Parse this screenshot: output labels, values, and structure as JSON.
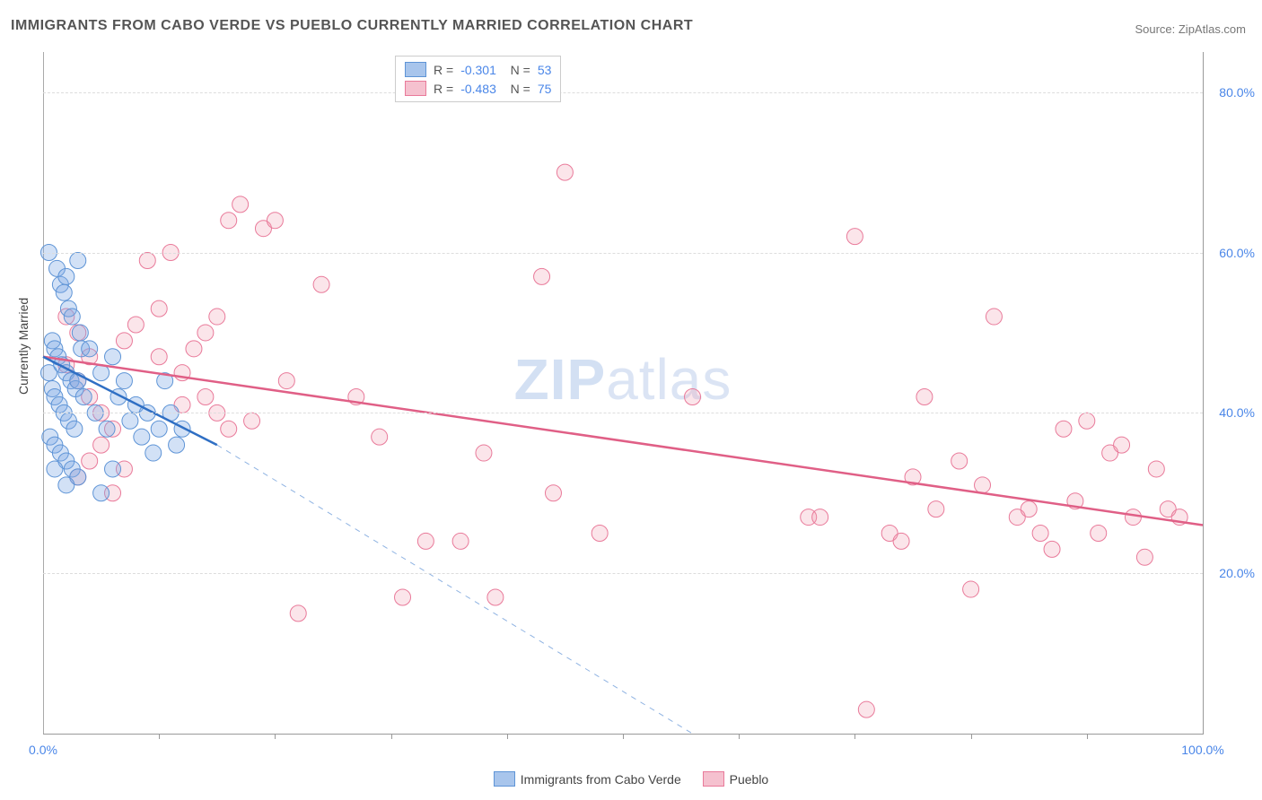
{
  "title": "IMMIGRANTS FROM CABO VERDE VS PUEBLO CURRENTLY MARRIED CORRELATION CHART",
  "source_label": "Source: ",
  "source_name": "ZipAtlas.com",
  "watermark_prefix": "ZIP",
  "watermark_suffix": "atlas",
  "y_axis_title": "Currently Married",
  "chart": {
    "type": "scatter",
    "xlim": [
      0,
      100
    ],
    "ylim": [
      0,
      85
    ],
    "x_tick_labels": [
      {
        "x": 0,
        "label": "0.0%"
      },
      {
        "x": 100,
        "label": "100.0%"
      }
    ],
    "x_ticks_minor": [
      10,
      20,
      30,
      40,
      50,
      60,
      70,
      80,
      90
    ],
    "y_tick_labels": [
      {
        "y": 20,
        "label": "20.0%"
      },
      {
        "y": 40,
        "label": "40.0%"
      },
      {
        "y": 60,
        "label": "60.0%"
      },
      {
        "y": 80,
        "label": "80.0%"
      }
    ],
    "grid_color": "#dddddd",
    "background_color": "#ffffff",
    "point_radius": 9,
    "series": [
      {
        "name": "Immigrants from Cabo Verde",
        "color_fill": "#a8c5ec",
        "color_stroke": "#5e94d6",
        "R": "-0.301",
        "N": "53",
        "trend": {
          "x1": 0,
          "y1": 47,
          "x2": 15,
          "y2": 36,
          "extrap_x2": 56,
          "extrap_y2": 0
        },
        "points": [
          [
            0.5,
            60
          ],
          [
            1.2,
            58
          ],
          [
            1.5,
            56
          ],
          [
            1.8,
            55
          ],
          [
            2.0,
            57
          ],
          [
            2.2,
            53
          ],
          [
            2.5,
            52
          ],
          [
            3.0,
            59
          ],
          [
            3.2,
            50
          ],
          [
            0.8,
            49
          ],
          [
            1.0,
            48
          ],
          [
            1.3,
            47
          ],
          [
            1.6,
            46
          ],
          [
            2.0,
            45
          ],
          [
            2.4,
            44
          ],
          [
            2.8,
            43
          ],
          [
            3.3,
            48
          ],
          [
            0.5,
            45
          ],
          [
            0.8,
            43
          ],
          [
            1.0,
            42
          ],
          [
            1.4,
            41
          ],
          [
            1.8,
            40
          ],
          [
            2.2,
            39
          ],
          [
            2.7,
            38
          ],
          [
            3.0,
            44
          ],
          [
            0.6,
            37
          ],
          [
            1.0,
            36
          ],
          [
            1.5,
            35
          ],
          [
            2.0,
            34
          ],
          [
            2.5,
            33
          ],
          [
            3.0,
            32
          ],
          [
            3.5,
            42
          ],
          [
            4.0,
            48
          ],
          [
            4.5,
            40
          ],
          [
            5.0,
            45
          ],
          [
            5.5,
            38
          ],
          [
            6.0,
            47
          ],
          [
            6.5,
            42
          ],
          [
            7.0,
            44
          ],
          [
            7.5,
            39
          ],
          [
            8.0,
            41
          ],
          [
            8.5,
            37
          ],
          [
            9.0,
            40
          ],
          [
            9.5,
            35
          ],
          [
            10,
            38
          ],
          [
            10.5,
            44
          ],
          [
            11,
            40
          ],
          [
            11.5,
            36
          ],
          [
            12,
            38
          ],
          [
            5,
            30
          ],
          [
            2,
            31
          ],
          [
            1,
            33
          ],
          [
            6,
            33
          ]
        ]
      },
      {
        "name": "Pueblo",
        "color_fill": "#f5c1cf",
        "color_stroke": "#e97a9a",
        "R": "-0.483",
        "N": "75",
        "trend": {
          "x1": 0,
          "y1": 47,
          "x2": 100,
          "y2": 26
        },
        "points": [
          [
            2,
            46
          ],
          [
            3,
            44
          ],
          [
            4,
            42
          ],
          [
            5,
            40
          ],
          [
            6,
            38
          ],
          [
            7,
            49
          ],
          [
            8,
            51
          ],
          [
            9,
            59
          ],
          [
            10,
            53
          ],
          [
            11,
            60
          ],
          [
            12,
            41
          ],
          [
            13,
            48
          ],
          [
            14,
            50
          ],
          [
            15,
            52
          ],
          [
            16,
            64
          ],
          [
            17,
            66
          ],
          [
            18,
            39
          ],
          [
            19,
            63
          ],
          [
            20,
            64
          ],
          [
            21,
            44
          ],
          [
            22,
            15
          ],
          [
            24,
            56
          ],
          [
            27,
            42
          ],
          [
            29,
            37
          ],
          [
            31,
            17
          ],
          [
            33,
            24
          ],
          [
            36,
            24
          ],
          [
            38,
            35
          ],
          [
            39,
            17
          ],
          [
            43,
            57
          ],
          [
            44,
            30
          ],
          [
            45,
            70
          ],
          [
            48,
            25
          ],
          [
            56,
            42
          ],
          [
            66,
            27
          ],
          [
            67,
            27
          ],
          [
            70,
            62
          ],
          [
            71,
            3
          ],
          [
            73,
            25
          ],
          [
            74,
            24
          ],
          [
            75,
            32
          ],
          [
            76,
            42
          ],
          [
            77,
            28
          ],
          [
            79,
            34
          ],
          [
            80,
            18
          ],
          [
            81,
            31
          ],
          [
            82,
            52
          ],
          [
            84,
            27
          ],
          [
            85,
            28
          ],
          [
            86,
            25
          ],
          [
            87,
            23
          ],
          [
            88,
            38
          ],
          [
            89,
            29
          ],
          [
            90,
            39
          ],
          [
            91,
            25
          ],
          [
            92,
            35
          ],
          [
            93,
            36
          ],
          [
            94,
            27
          ],
          [
            95,
            22
          ],
          [
            96,
            33
          ],
          [
            97,
            28
          ],
          [
            98,
            27
          ],
          [
            5,
            36
          ],
          [
            4,
            34
          ],
          [
            3,
            32
          ],
          [
            6,
            30
          ],
          [
            7,
            33
          ],
          [
            4,
            47
          ],
          [
            3,
            50
          ],
          [
            2,
            52
          ],
          [
            14,
            42
          ],
          [
            15,
            40
          ],
          [
            16,
            38
          ],
          [
            12,
            45
          ],
          [
            10,
            47
          ]
        ]
      }
    ]
  },
  "legend_bottom": [
    {
      "swatch_fill": "#a8c5ec",
      "swatch_stroke": "#5e94d6",
      "label": "Immigrants from Cabo Verde"
    },
    {
      "swatch_fill": "#f5c1cf",
      "swatch_stroke": "#e97a9a",
      "label": "Pueblo"
    }
  ]
}
